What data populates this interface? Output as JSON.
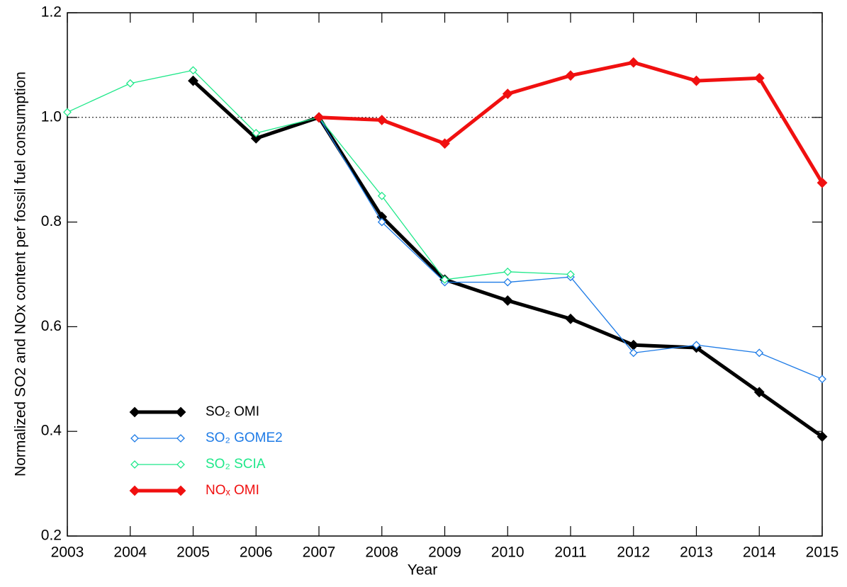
{
  "chart_data": {
    "type": "line",
    "x_label": "Year",
    "y_label": "Normalized SO2 and NOx content per fossil fuel consumption",
    "x": [
      2003,
      2004,
      2005,
      2006,
      2007,
      2008,
      2009,
      2010,
      2011,
      2012,
      2013,
      2014,
      2015
    ],
    "xlim": [
      2003,
      2015
    ],
    "xticks": [
      2003,
      2004,
      2005,
      2006,
      2007,
      2008,
      2009,
      2010,
      2011,
      2012,
      2013,
      2014,
      2015
    ],
    "ylim": [
      0.2,
      1.2
    ],
    "yticks": [
      0.2,
      0.4,
      0.6,
      0.8,
      {
        "value": 1,
        "label": "1.0"
      },
      1.2
    ],
    "reference_line": 1,
    "legend": "lower left",
    "series": [
      {
        "name": "SO₂ OMI",
        "color": "#000000",
        "values": [
          null,
          null,
          1.07,
          0.96,
          1.0,
          0.81,
          0.69,
          0.65,
          0.615,
          0.565,
          0.56,
          0.475,
          0.39
        ]
      },
      {
        "name": "SO₂ GOME2",
        "color": "#1e7be6",
        "values": [
          null,
          null,
          null,
          null,
          1.0,
          0.8,
          0.685,
          0.685,
          0.695,
          0.55,
          0.565,
          0.55,
          0.5
        ]
      },
      {
        "name": "SO₂ SCIA",
        "color": "#1fe88a",
        "values": [
          1.01,
          1.065,
          1.09,
          0.97,
          1.0,
          0.85,
          0.69,
          0.705,
          0.7,
          null,
          null,
          null,
          null
        ]
      },
      {
        "name": "NOₓ OMI",
        "color": "#f01010",
        "values": [
          null,
          null,
          null,
          null,
          1.0,
          0.995,
          0.95,
          1.045,
          1.08,
          1.105,
          1.07,
          1.075,
          0.875
        ]
      }
    ]
  }
}
